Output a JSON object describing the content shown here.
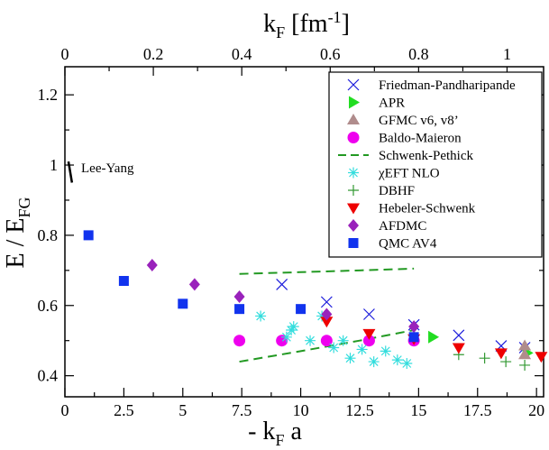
{
  "chart_data": {
    "type": "scatter",
    "title": "",
    "xlabel_bottom": "- k",
    "xlabel_bottom_sub": "F",
    "xlabel_bottom_tail": " a",
    "xlabel_top": "k",
    "xlabel_top_sub": "F",
    "xlabel_top_tail": " [fm",
    "xlabel_top_sup": "-1",
    "xlabel_top_close": "]",
    "ylabel": "E / E",
    "ylabel_sub": "FG",
    "xlim": [
      0,
      20.3
    ],
    "ylim": [
      0.34,
      1.28
    ],
    "x_ticks": [
      "0",
      "2.5",
      "5",
      "7.5",
      "10",
      "12.5",
      "15",
      "17.5",
      "20"
    ],
    "x_tick_values": [
      0,
      2.5,
      5,
      7.5,
      10,
      12.5,
      15,
      17.5,
      20
    ],
    "x_top_ticks": [
      "0",
      "0.2",
      "0.4",
      "0.6",
      "0.8",
      "1"
    ],
    "x_top_tick_values": [
      0,
      0.2,
      0.4,
      0.6,
      0.8,
      1.0
    ],
    "x_top_scale": 18.75,
    "y_ticks": [
      "0.4",
      "0.6",
      "0.8",
      "1",
      "1.2"
    ],
    "y_tick_values": [
      0.4,
      0.6,
      0.8,
      1.0,
      1.2
    ],
    "annotation": "Lee-Yang",
    "lee_yang_line": [
      [
        0.15,
        1.01
      ],
      [
        0.3,
        0.95
      ]
    ],
    "series": [
      {
        "name": "Friedman-Pandharipande",
        "marker": "x",
        "color": "#1a1adb",
        "points": [
          [
            9.2,
            0.66
          ],
          [
            11.1,
            0.61
          ],
          [
            12.9,
            0.575
          ],
          [
            14.8,
            0.545
          ],
          [
            16.7,
            0.515
          ],
          [
            18.5,
            0.485
          ],
          [
            19.5,
            0.48
          ]
        ]
      },
      {
        "name": "APR",
        "marker": "triangle-right",
        "color": "#22dd22",
        "points": [
          [
            15.6,
            0.51
          ],
          [
            19.6,
            0.465
          ]
        ]
      },
      {
        "name": "GFMC v6, v8’",
        "marker": "triangle-up",
        "color": "#b08c8c",
        "points": [
          [
            19.5,
            0.485
          ],
          [
            19.5,
            0.46
          ]
        ]
      },
      {
        "name": "Baldo-Maieron",
        "marker": "circle",
        "color": "#ee00ee",
        "points": [
          [
            7.4,
            0.5
          ],
          [
            9.2,
            0.5
          ],
          [
            11.1,
            0.5
          ],
          [
            12.9,
            0.5
          ],
          [
            14.8,
            0.5
          ]
        ]
      },
      {
        "name": "Schwenk-Pethick",
        "marker": "dashed-line",
        "color": "#229922",
        "lines": [
          [
            [
              7.4,
              0.69
            ],
            [
              10,
              0.695
            ],
            [
              12.5,
              0.7
            ],
            [
              14.8,
              0.705
            ]
          ],
          [
            [
              7.4,
              0.44
            ],
            [
              10,
              0.47
            ],
            [
              12.5,
              0.5
            ],
            [
              14.8,
              0.53
            ]
          ]
        ]
      },
      {
        "name": "χEFT NLO",
        "marker": "asterisk",
        "color": "#33dddd",
        "points": [
          [
            8.3,
            0.57
          ],
          [
            9.4,
            0.51
          ],
          [
            9.6,
            0.53
          ],
          [
            9.7,
            0.54
          ],
          [
            10.4,
            0.5
          ],
          [
            10.9,
            0.57
          ],
          [
            11.4,
            0.48
          ],
          [
            11.8,
            0.5
          ],
          [
            12.1,
            0.45
          ],
          [
            12.6,
            0.475
          ],
          [
            13.1,
            0.44
          ],
          [
            13.6,
            0.47
          ],
          [
            14.1,
            0.445
          ],
          [
            14.5,
            0.435
          ]
        ]
      },
      {
        "name": "DBHF",
        "marker": "plus",
        "color": "#339933",
        "points": [
          [
            16.7,
            0.46
          ],
          [
            17.8,
            0.45
          ],
          [
            18.7,
            0.44
          ],
          [
            19.5,
            0.43
          ]
        ]
      },
      {
        "name": "Hebeler-Schwenk",
        "marker": "triangle-down",
        "color": "#ee0000",
        "points": [
          [
            11.1,
            0.555
          ],
          [
            12.9,
            0.52
          ],
          [
            14.8,
            0.505
          ],
          [
            16.7,
            0.48
          ],
          [
            18.5,
            0.465
          ],
          [
            20.2,
            0.455
          ]
        ]
      },
      {
        "name": "AFDMC",
        "marker": "diamond",
        "color": "#9922bb",
        "points": [
          [
            3.7,
            0.715
          ],
          [
            5.5,
            0.66
          ],
          [
            7.4,
            0.625
          ],
          [
            11.1,
            0.575
          ],
          [
            14.8,
            0.54
          ]
        ]
      },
      {
        "name": "QMC AV4",
        "marker": "square",
        "color": "#1133ee",
        "points": [
          [
            1.0,
            0.8
          ],
          [
            2.5,
            0.67
          ],
          [
            5.0,
            0.605
          ],
          [
            7.4,
            0.59
          ],
          [
            10.0,
            0.59
          ],
          [
            14.8,
            0.51
          ]
        ]
      }
    ],
    "legend_position": "top-right"
  }
}
